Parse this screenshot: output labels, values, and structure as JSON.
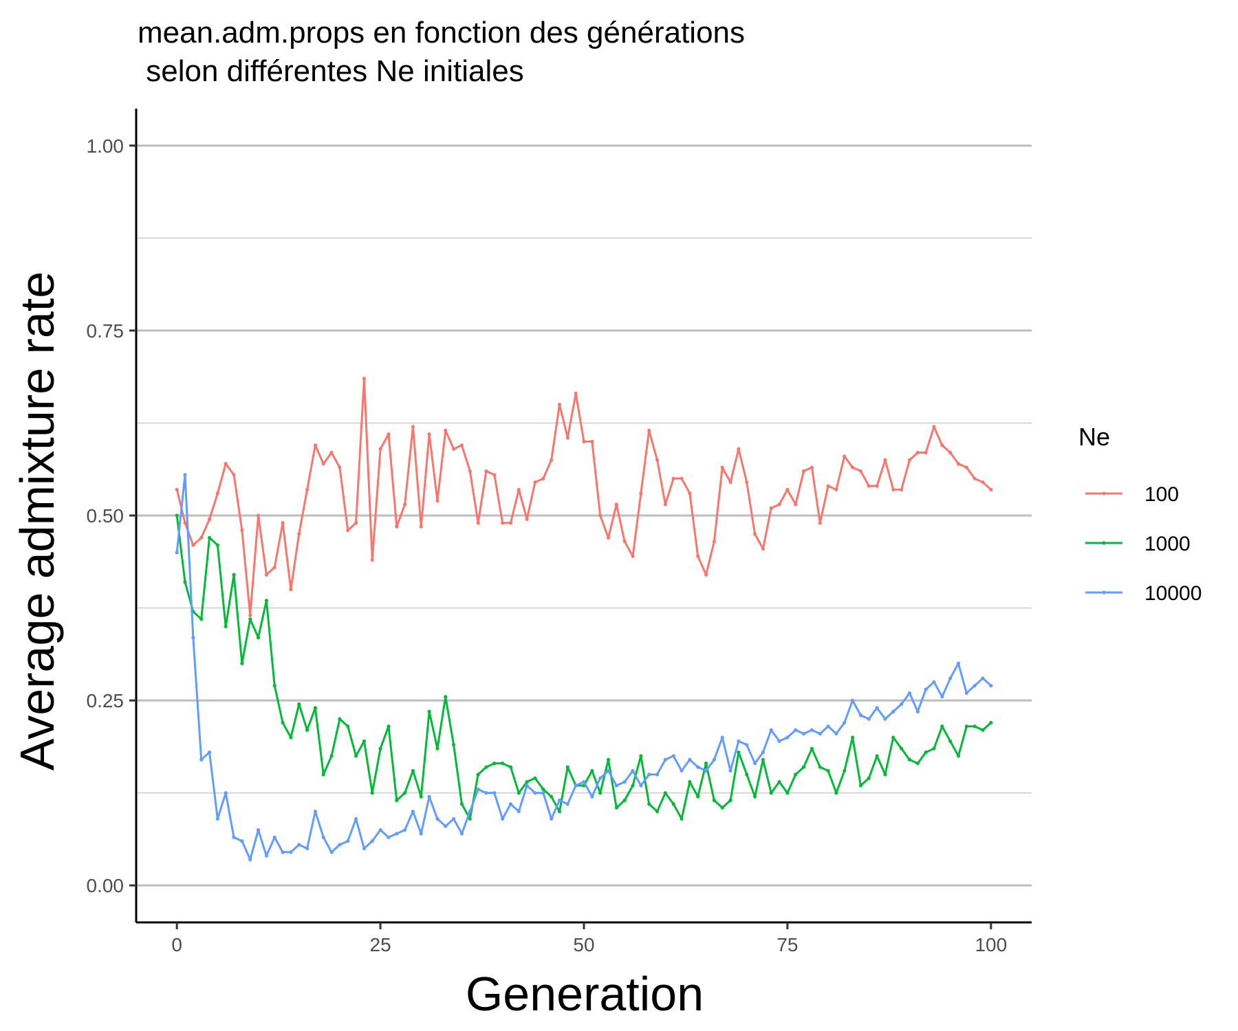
{
  "chart_data": {
    "type": "line",
    "title": "mean.adm.props en fonction des générations",
    "subtitle": " selon différentes Ne initiales",
    "xlabel": "Generation",
    "ylabel": "Average admixture rate",
    "xlim": [
      -5,
      105
    ],
    "ylim": [
      -0.05,
      1.05
    ],
    "x_ticks": [
      0,
      25,
      50,
      75,
      100
    ],
    "x_tick_labels": [
      "0",
      "25",
      "50",
      "75",
      "100"
    ],
    "y_ticks": [
      0,
      0.25,
      0.5,
      0.75,
      1
    ],
    "y_tick_labels": [
      "0.00",
      "0.25",
      "0.50",
      "0.75",
      "1.00"
    ],
    "y_minor_ticks": [
      0.125,
      0.375,
      0.625,
      0.875
    ],
    "grid": "horizontal",
    "legend": {
      "title": "Ne",
      "position": "right"
    },
    "x": [
      0,
      1,
      2,
      3,
      4,
      5,
      6,
      7,
      8,
      9,
      10,
      11,
      12,
      13,
      14,
      15,
      16,
      17,
      18,
      19,
      20,
      21,
      22,
      23,
      24,
      25,
      26,
      27,
      28,
      29,
      30,
      31,
      32,
      33,
      34,
      35,
      36,
      37,
      38,
      39,
      40,
      41,
      42,
      43,
      44,
      45,
      46,
      47,
      48,
      49,
      50,
      51,
      52,
      53,
      54,
      55,
      56,
      57,
      58,
      59,
      60,
      61,
      62,
      63,
      64,
      65,
      66,
      67,
      68,
      69,
      70,
      71,
      72,
      73,
      74,
      75,
      76,
      77,
      78,
      79,
      80,
      81,
      82,
      83,
      84,
      85,
      86,
      87,
      88,
      89,
      90,
      91,
      92,
      93,
      94,
      95,
      96,
      97,
      98,
      99,
      100
    ],
    "series": [
      {
        "name": "100",
        "color": "#F8766D",
        "values": [
          0.535,
          0.49,
          0.46,
          0.47,
          0.495,
          0.53,
          0.57,
          0.555,
          0.48,
          0.365,
          0.5,
          0.42,
          0.43,
          0.49,
          0.4,
          0.475,
          0.535,
          0.595,
          0.57,
          0.585,
          0.565,
          0.48,
          0.49,
          0.685,
          0.44,
          0.59,
          0.61,
          0.485,
          0.515,
          0.62,
          0.485,
          0.61,
          0.52,
          0.615,
          0.59,
          0.595,
          0.56,
          0.49,
          0.56,
          0.555,
          0.49,
          0.49,
          0.535,
          0.495,
          0.545,
          0.55,
          0.575,
          0.65,
          0.605,
          0.665,
          0.6,
          0.6,
          0.5,
          0.47,
          0.515,
          0.465,
          0.445,
          0.53,
          0.615,
          0.575,
          0.515,
          0.55,
          0.55,
          0.53,
          0.445,
          0.42,
          0.465,
          0.565,
          0.545,
          0.59,
          0.545,
          0.475,
          0.455,
          0.51,
          0.515,
          0.535,
          0.515,
          0.56,
          0.565,
          0.49,
          0.54,
          0.535,
          0.58,
          0.565,
          0.56,
          0.54,
          0.54,
          0.575,
          0.535,
          0.535,
          0.575,
          0.585,
          0.585,
          0.62,
          0.595,
          0.585,
          0.57,
          0.565,
          0.55,
          0.545,
          0.535
        ]
      },
      {
        "name": "1000",
        "color": "#00BA38",
        "values": [
          0.5,
          0.41,
          0.37,
          0.36,
          0.47,
          0.46,
          0.35,
          0.42,
          0.3,
          0.36,
          0.335,
          0.385,
          0.27,
          0.22,
          0.2,
          0.245,
          0.21,
          0.24,
          0.15,
          0.175,
          0.225,
          0.215,
          0.175,
          0.195,
          0.125,
          0.185,
          0.215,
          0.115,
          0.125,
          0.155,
          0.12,
          0.235,
          0.185,
          0.255,
          0.19,
          0.11,
          0.09,
          0.15,
          0.16,
          0.165,
          0.165,
          0.16,
          0.125,
          0.14,
          0.145,
          0.13,
          0.12,
          0.1,
          0.16,
          0.135,
          0.135,
          0.155,
          0.125,
          0.17,
          0.105,
          0.115,
          0.135,
          0.175,
          0.11,
          0.1,
          0.125,
          0.11,
          0.09,
          0.14,
          0.12,
          0.165,
          0.115,
          0.105,
          0.115,
          0.18,
          0.15,
          0.12,
          0.17,
          0.125,
          0.14,
          0.125,
          0.15,
          0.16,
          0.185,
          0.16,
          0.155,
          0.125,
          0.155,
          0.2,
          0.135,
          0.145,
          0.175,
          0.15,
          0.2,
          0.185,
          0.17,
          0.165,
          0.18,
          0.185,
          0.215,
          0.195,
          0.175,
          0.215,
          0.215,
          0.21,
          0.22
        ]
      },
      {
        "name": "10000",
        "color": "#619CFF",
        "values": [
          0.45,
          0.555,
          0.335,
          0.17,
          0.18,
          0.09,
          0.125,
          0.065,
          0.06,
          0.035,
          0.075,
          0.04,
          0.065,
          0.045,
          0.045,
          0.055,
          0.05,
          0.1,
          0.065,
          0.045,
          0.055,
          0.06,
          0.09,
          0.05,
          0.06,
          0.075,
          0.065,
          0.07,
          0.075,
          0.1,
          0.07,
          0.12,
          0.09,
          0.08,
          0.09,
          0.07,
          0.1,
          0.13,
          0.125,
          0.125,
          0.09,
          0.11,
          0.1,
          0.135,
          0.125,
          0.125,
          0.09,
          0.115,
          0.11,
          0.135,
          0.14,
          0.12,
          0.145,
          0.155,
          0.135,
          0.14,
          0.155,
          0.135,
          0.15,
          0.15,
          0.17,
          0.175,
          0.155,
          0.17,
          0.16,
          0.155,
          0.17,
          0.2,
          0.155,
          0.195,
          0.19,
          0.165,
          0.18,
          0.21,
          0.195,
          0.2,
          0.21,
          0.205,
          0.21,
          0.205,
          0.215,
          0.205,
          0.22,
          0.25,
          0.23,
          0.225,
          0.24,
          0.225,
          0.235,
          0.245,
          0.26,
          0.235,
          0.265,
          0.275,
          0.255,
          0.28,
          0.3,
          0.26,
          0.27,
          0.28,
          0.27
        ]
      }
    ]
  }
}
